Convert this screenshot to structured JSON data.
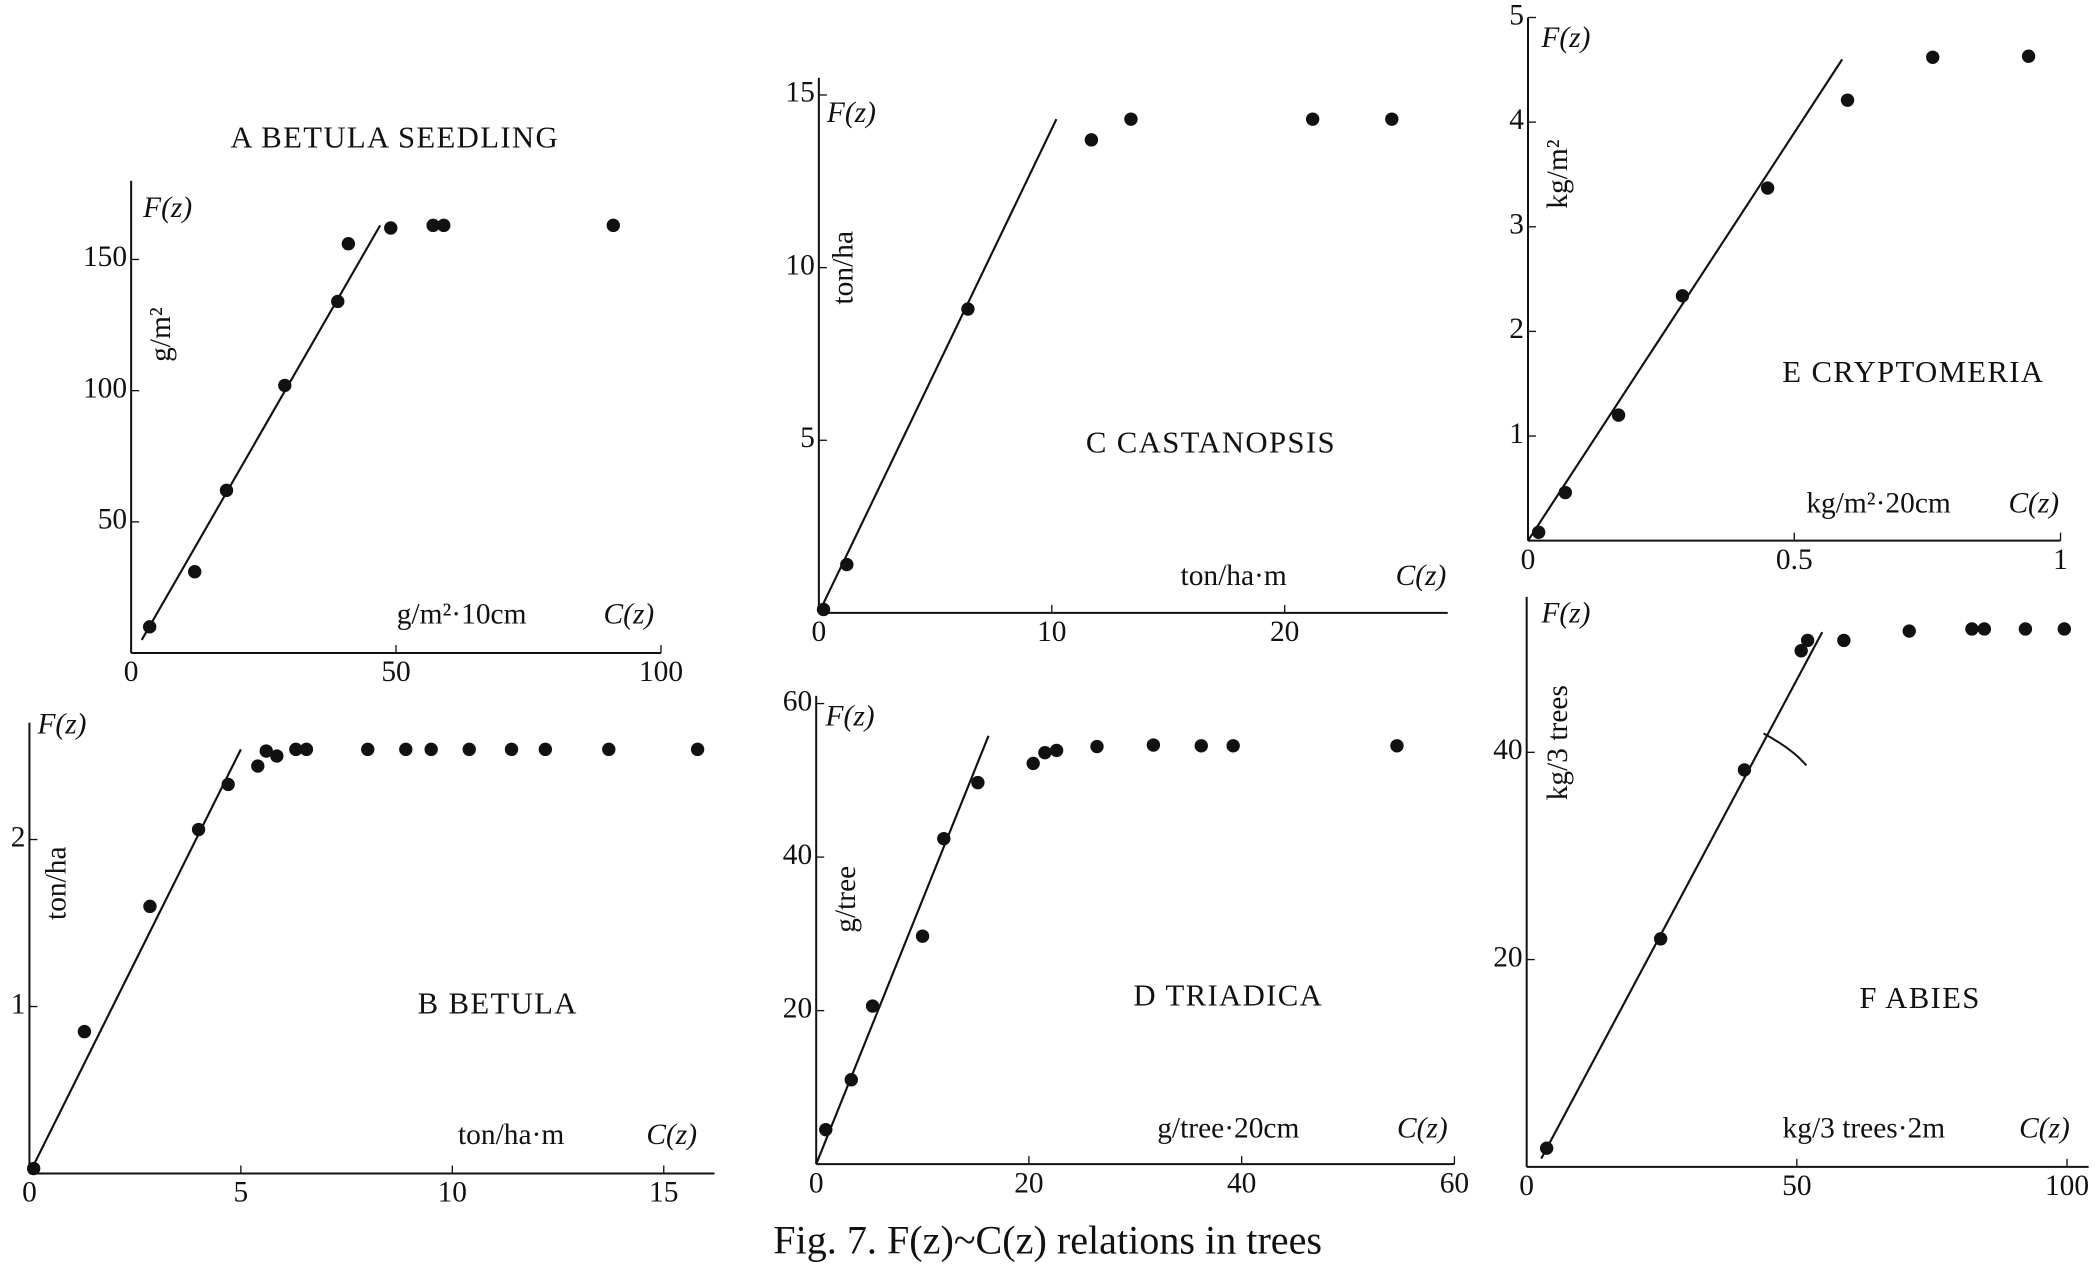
{
  "caption": "Fig. 7.   F(z)~C(z) relations in trees",
  "chart_data": [
    {
      "type": "scatter",
      "title": "A  BETULA SEEDLING",
      "y_name": "F(z)",
      "y_unit": "g/m²",
      "x_unit": "g/m²·10cm",
      "x_name": "C(z)",
      "x": [
        3.5,
        12,
        18,
        29,
        39,
        41,
        49,
        57,
        59,
        91
      ],
      "values": [
        10,
        31,
        62,
        102,
        134,
        156,
        162,
        163,
        163,
        163
      ],
      "fit": {
        "x": [
          2,
          47
        ],
        "values": [
          5,
          163
        ]
      },
      "xlim": [
        0,
        100
      ],
      "ylim": [
        0,
        180
      ],
      "xticks": [
        0,
        50,
        100
      ],
      "yticks": [
        50,
        100,
        150
      ],
      "color": "#111111"
    },
    {
      "type": "scatter",
      "title": "B   BETULA",
      "y_name": "F(z)",
      "y_unit": "ton/ha",
      "x_unit": "ton/ha·m",
      "x_name": "C(z)",
      "x": [
        0.1,
        1.3,
        2.85,
        4.0,
        4.7,
        5.4,
        5.6,
        5.85,
        6.3,
        6.55,
        8.0,
        8.9,
        9.5,
        10.4,
        11.4,
        12.2,
        13.7,
        15.8
      ],
      "values": [
        0.03,
        0.85,
        1.6,
        2.06,
        2.33,
        2.44,
        2.53,
        2.5,
        2.54,
        2.54,
        2.54,
        2.54,
        2.54,
        2.54,
        2.54,
        2.54,
        2.54,
        2.54
      ],
      "fit": {
        "x": [
          0,
          5
        ],
        "values": [
          0,
          2.54
        ]
      },
      "xlim": [
        0,
        16.2
      ],
      "ylim": [
        0,
        2.7
      ],
      "xticks": [
        0,
        5,
        10,
        15
      ],
      "yticks": [
        1,
        2
      ],
      "color": "#111111"
    },
    {
      "type": "scatter",
      "title": "C   CASTANOPSIS",
      "y_name": "F(z)",
      "y_unit": "ton/ha",
      "x_unit": "ton/ha·m",
      "x_name": "C(z)",
      "x": [
        0.2,
        1.2,
        6.4,
        11.7,
        13.4,
        21.2,
        24.6
      ],
      "values": [
        0.1,
        1.4,
        8.8,
        13.7,
        14.3,
        14.3,
        14.3
      ],
      "fit": {
        "x": [
          0,
          10.2
        ],
        "values": [
          0,
          14.3
        ]
      },
      "xlim": [
        0,
        27
      ],
      "ylim": [
        0,
        15.5
      ],
      "xticks": [
        0,
        10,
        20
      ],
      "yticks": [
        5,
        10,
        15
      ],
      "color": "#111111"
    },
    {
      "type": "scatter",
      "title": "D   TRIADICA",
      "y_name": "F(z)",
      "y_unit": "g/tree",
      "x_unit": "g/tree·20cm",
      "x_name": "C(z)",
      "x": [
        0.9,
        3.3,
        5.3,
        10,
        12,
        15.2,
        20.4,
        21.5,
        22.6,
        26.4,
        31.7,
        36.2,
        39.2,
        54.6
      ],
      "values": [
        4.5,
        11,
        20.6,
        29.7,
        42.4,
        49.7,
        52.2,
        53.6,
        53.9,
        54.4,
        54.6,
        54.5,
        54.5,
        54.5
      ],
      "fit": {
        "x": [
          0,
          16.2
        ],
        "values": [
          0,
          55.8
        ]
      },
      "xlim": [
        0,
        60
      ],
      "ylim": [
        0,
        61
      ],
      "xticks": [
        0,
        20,
        40,
        60
      ],
      "yticks": [
        20,
        40,
        60
      ],
      "color": "#111111"
    },
    {
      "type": "scatter",
      "title": "E   CRYPTOMERIA",
      "y_name": "F(z)",
      "y_unit": "kg/m²",
      "x_unit": "kg/m²·20cm",
      "x_name": "C(z)",
      "x": [
        0.02,
        0.07,
        0.17,
        0.29,
        0.45,
        0.6,
        0.76,
        0.94
      ],
      "values": [
        0.08,
        0.46,
        1.2,
        2.34,
        3.37,
        4.21,
        4.62,
        4.63
      ],
      "fit": {
        "x": [
          0,
          0.59
        ],
        "values": [
          0,
          4.6
        ]
      },
      "xlim": [
        0,
        1
      ],
      "ylim": [
        0,
        5
      ],
      "xticks": [
        0,
        0.5,
        1
      ],
      "yticks": [
        1,
        2,
        3,
        4,
        5
      ],
      "color": "#111111"
    },
    {
      "type": "scatter",
      "title": "F   ABIES",
      "y_name": "F(z)",
      "y_unit": "kg/3 trees",
      "x_unit": "kg/3 trees·2m",
      "x_name": "C(z)",
      "x": [
        3.7,
        24.8,
        40.3,
        50.8,
        52,
        58.7,
        70.8,
        82.4,
        84.7,
        92.3,
        99.5
      ],
      "values": [
        1.8,
        22,
        38.3,
        49.8,
        50.8,
        50.8,
        51.7,
        51.9,
        51.9,
        51.9,
        51.9
      ],
      "fit": {
        "x": [
          2.7,
          54.7
        ],
        "values": [
          0.8,
          51.6
        ]
      },
      "xlim": [
        0,
        104
      ],
      "ylim": [
        0,
        55
      ],
      "xticks": [
        0,
        50,
        100
      ],
      "yticks": [
        20,
        40
      ],
      "color": "#111111"
    }
  ]
}
